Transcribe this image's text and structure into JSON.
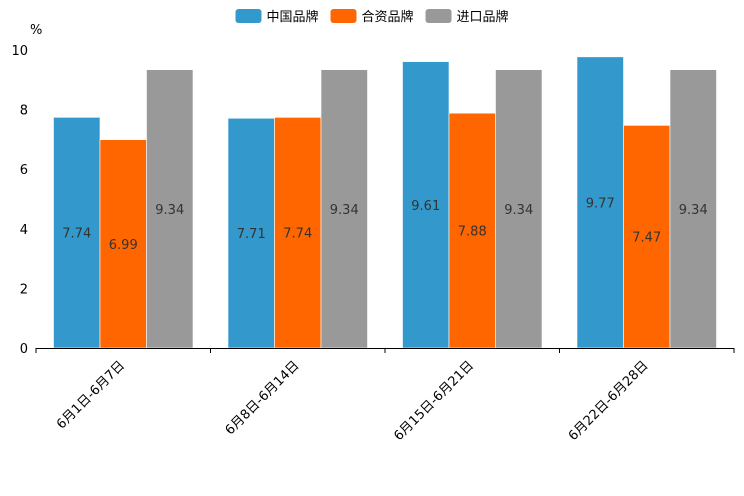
{
  "chart_data": {
    "type": "bar",
    "unit_label": "%",
    "categories": [
      "6月1日-6月7日",
      "6月8日-6月14日",
      "6月15日-6月21日",
      "6月22日-6月28日"
    ],
    "series": [
      {
        "name": "中国品牌",
        "color": "#3399CC",
        "values": [
          7.74,
          7.71,
          9.61,
          9.77
        ],
        "labels": [
          "7.74",
          "7.71",
          "9.61",
          "9.77"
        ]
      },
      {
        "name": "合资品牌",
        "color": "#FF6600",
        "values": [
          6.99,
          7.74,
          7.88,
          7.47
        ],
        "labels": [
          "6.99",
          "7.74",
          "7.88",
          "7.47"
        ]
      },
      {
        "name": "进口品牌",
        "color": "#999999",
        "values": [
          9.34,
          9.34,
          9.34,
          9.34
        ],
        "labels": [
          "9.34",
          "9.34",
          "9.34",
          "9.34"
        ]
      }
    ],
    "ylim": [
      0,
      10
    ],
    "yticks": [
      0,
      2,
      4,
      6,
      8,
      10
    ],
    "ytick_labels": [
      "0",
      "2",
      "4",
      "6",
      "8",
      "10"
    ],
    "legend_position": "top-center",
    "grid": false
  }
}
